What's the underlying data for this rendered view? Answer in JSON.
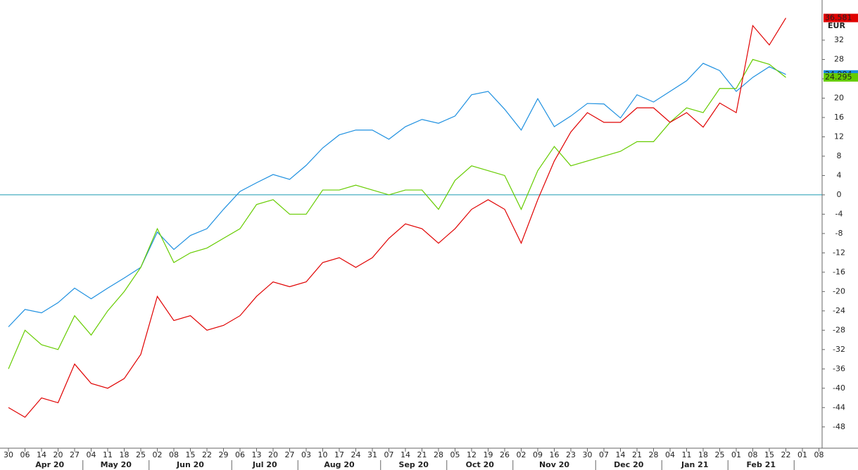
{
  "chart_data": {
    "type": "line",
    "y_label": "EUR",
    "categories": [
      "30",
      "06",
      "14",
      "20",
      "27",
      "04",
      "11",
      "18",
      "25",
      "02",
      "08",
      "15",
      "22",
      "29",
      "06",
      "13",
      "20",
      "27",
      "03",
      "10",
      "17",
      "24",
      "31",
      "07",
      "14",
      "21",
      "28",
      "05",
      "12",
      "19",
      "26",
      "02",
      "09",
      "16",
      "23",
      "30",
      "07",
      "14",
      "21",
      "28",
      "04",
      "11",
      "18",
      "25",
      "01",
      "08",
      "15",
      "22",
      "01",
      "08"
    ],
    "months": [
      "Apr 20",
      "May 20",
      "Jun 20",
      "Jul 20",
      "Aug 20",
      "Sep 20",
      "Oct 20",
      "Nov 20",
      "Dec 20",
      "Jan 21",
      "Feb 21"
    ],
    "series": [
      {
        "color": "#1e90e0",
        "values": [
          -27.3,
          -23.7,
          -24.4,
          -22.3,
          -19.3,
          -21.5,
          -19.3,
          -17.2,
          -15,
          -7.7,
          -11.3,
          -8.4,
          -7,
          -3,
          0.7,
          2.5,
          4.2,
          3.2,
          6.1,
          9.7,
          12.4,
          13.4,
          13.4,
          11.5,
          14.1,
          15.6,
          14.8,
          16.3,
          20.7,
          21.4,
          17.7,
          13.4,
          19.9,
          14.1,
          16.3,
          18.9,
          18.8,
          15.9,
          20.7,
          19.2,
          21.4,
          23.6,
          27.2,
          25.7,
          21.4,
          24.3,
          26.5,
          24.904,
          null,
          null
        ]
      },
      {
        "color": "#66cc00",
        "values": [
          -36,
          -28,
          -31,
          -32,
          -25,
          -29,
          -24,
          -20,
          -15,
          -7,
          -14,
          -12,
          -11,
          -9,
          -7,
          -2,
          -1,
          -4,
          -4,
          1,
          1,
          2,
          1,
          0,
          1,
          1,
          -3,
          3,
          6,
          5,
          4,
          -3,
          5,
          10,
          6,
          7,
          8,
          9,
          11,
          11,
          15,
          18,
          17,
          22,
          22,
          28,
          27,
          24.295,
          null,
          null
        ]
      },
      {
        "color": "#e00000",
        "values": [
          -44,
          -46,
          -42,
          -43,
          -35,
          -39,
          -40,
          -38,
          -33,
          -21,
          -26,
          -25,
          -28,
          -27,
          -25,
          -21,
          -18,
          -19,
          -18,
          -14,
          -13,
          -15,
          -13,
          -9,
          -6,
          -7,
          -10,
          -7,
          -3,
          -1,
          -3,
          -10,
          -1,
          7,
          13,
          17,
          15,
          15,
          18,
          18,
          15,
          17,
          14,
          19,
          17,
          35,
          31,
          36.581,
          null,
          null
        ]
      }
    ],
    "hline": 0,
    "ylim": [
      -52.4,
      40.3
    ],
    "yticks": [
      -48,
      -44,
      -40,
      -36,
      -32,
      -28,
      -24,
      -20,
      -16,
      -12,
      -8,
      -4,
      0,
      4,
      8,
      12,
      16,
      20,
      24,
      28,
      32
    ]
  }
}
